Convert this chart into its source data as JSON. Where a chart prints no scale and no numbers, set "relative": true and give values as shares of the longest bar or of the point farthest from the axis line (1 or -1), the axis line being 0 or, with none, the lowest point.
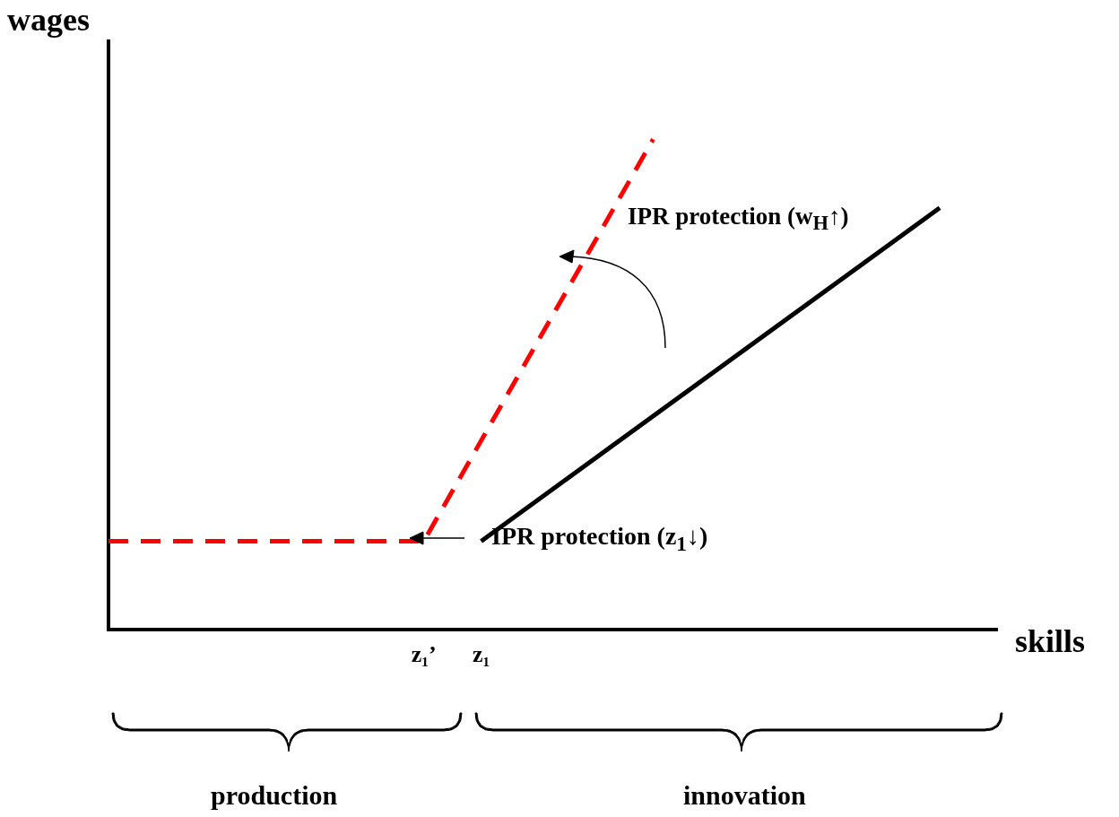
{
  "chart_data": {
    "type": "line",
    "relative": true,
    "xlabel": "skills",
    "ylabel": "wages",
    "categories": [
      null,
      null,
      null,
      null,
      null,
      null,
      null,
      null,
      null,
      null,
      null,
      "z₁’",
      null,
      "z₁",
      null,
      null,
      null,
      null,
      null,
      null,
      null,
      null,
      null,
      null,
      null,
      null,
      null,
      null,
      null,
      null,
      null,
      null
    ],
    "series": [
      {
        "color": "#ff0000",
        "line_style": "dashed",
        "values": [
          0.18,
          null,
          null,
          null,
          null,
          null,
          null,
          null,
          null,
          null,
          null,
          0.18,
          null,
          null,
          null,
          null,
          null,
          null,
          null,
          1,
          null,
          null,
          null,
          null,
          null,
          null,
          null,
          null,
          null,
          null,
          null,
          null
        ]
      },
      {
        "color": "#000000",
        "line_style": "solid",
        "values": [
          null,
          null,
          null,
          null,
          null,
          null,
          null,
          null,
          null,
          null,
          null,
          null,
          null,
          0.18,
          null,
          null,
          null,
          null,
          null,
          null,
          null,
          null,
          null,
          null,
          null,
          null,
          null,
          null,
          null,
          0.86,
          null,
          null
        ]
      }
    ],
    "annotations": [
      "IPR protection (w$_{H}$↑)",
      "IPR protection (z$_{1}$↓)",
      "production",
      "innovation"
    ]
  }
}
